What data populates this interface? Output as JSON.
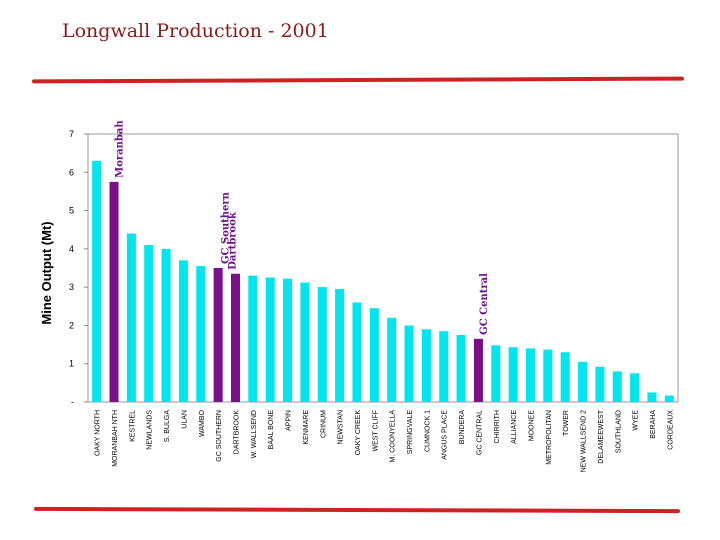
{
  "page": {
    "title": "Longwall Production - 2001"
  },
  "chart_data": {
    "type": "bar",
    "title": "Longwall Production - 2001",
    "xlabel": "",
    "ylabel": "Mine Output (Mt)",
    "ylim": [
      0,
      7
    ],
    "yticks": [
      "-",
      "1",
      "2",
      "3",
      "4",
      "5",
      "6",
      "7"
    ],
    "grid": false,
    "colors": {
      "default": "#00e5ee",
      "highlight": "#7a0f8c",
      "rule": "#cc2222"
    },
    "categories": [
      "OAKY NORTH",
      "MORANBAH NTH",
      "KESTREL",
      "NEWLANDS",
      "S. BULGA",
      "ULAN",
      "WAMBO",
      "GC SOUTHERN",
      "DARTBROOK",
      "W. WALLSEND",
      "BAAL BONE",
      "APPIN",
      "KENMARE",
      "CRINUM",
      "NEWSTAN",
      "OAKY CREEK",
      "WEST CLIFF",
      "M. COONYELLA",
      "SPRINGVALE",
      "CUMNOCK 1",
      "ANGUS PLACE",
      "BUNDERA",
      "GC CENTRAL",
      "CHIRRITH",
      "ALLIANCE",
      "MOONEE",
      "METROPOLITAN",
      "TOWER",
      "NEW WALLSEND 2",
      "DELAMEEWEST",
      "SOUTHLAND",
      "WYEE",
      "BERAHA",
      "CORDEAUX"
    ],
    "values": [
      6.3,
      5.75,
      4.4,
      4.1,
      4.0,
      3.7,
      3.55,
      3.5,
      3.35,
      3.3,
      3.25,
      3.22,
      3.12,
      3.0,
      2.95,
      2.6,
      2.45,
      2.2,
      2.0,
      1.9,
      1.85,
      1.75,
      1.65,
      1.48,
      1.43,
      1.4,
      1.37,
      1.3,
      1.05,
      0.92,
      0.8,
      0.75,
      0.25,
      0.17
    ],
    "highlighted": [
      1,
      7,
      8,
      22
    ],
    "annotations": [
      {
        "text": "Moranbah",
        "bar": 1
      },
      {
        "text": "GC Southern",
        "bar": 7
      },
      {
        "text": "Dartbrook",
        "bar": 8
      },
      {
        "text": "GC Central",
        "bar": 22
      }
    ]
  }
}
